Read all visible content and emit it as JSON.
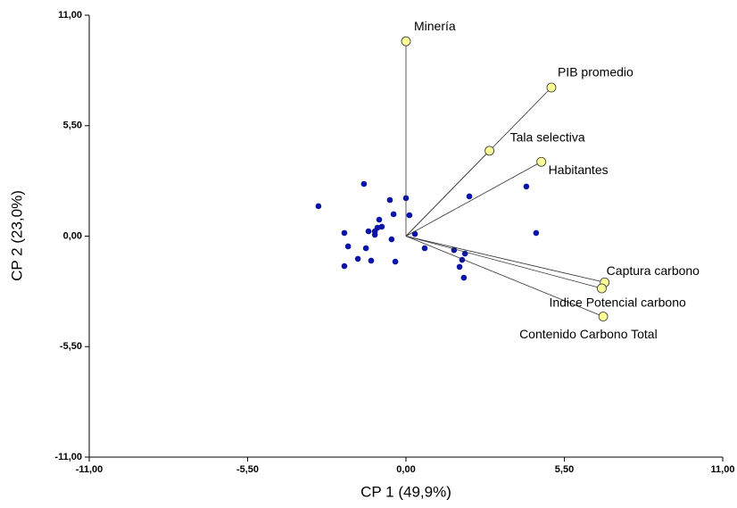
{
  "chart_data": {
    "type": "biplot",
    "x_label": "CP 1 (49,9%)",
    "y_label": "CP 2 (23,0%)",
    "xlim": [
      -11,
      11
    ],
    "ylim": [
      -11,
      11
    ],
    "xticks": [
      {
        "value": -11,
        "label": "-11,00"
      },
      {
        "value": -5.5,
        "label": "-5,50"
      },
      {
        "value": 0,
        "label": "0,00"
      },
      {
        "value": 5.5,
        "label": "5,50"
      },
      {
        "value": 11,
        "label": "11,00"
      }
    ],
    "yticks": [
      {
        "value": -11,
        "label": "-11,00"
      },
      {
        "value": -5.5,
        "label": "-5,50"
      },
      {
        "value": 0,
        "label": "0,00"
      },
      {
        "value": 5.5,
        "label": "5,50"
      },
      {
        "value": 11,
        "label": "11,00"
      }
    ],
    "points": {
      "color": "#0a14a8",
      "x": [
        -3.04,
        -1.46,
        -0.56,
        0.0,
        -0.43,
        0.12,
        -0.93,
        -0.99,
        -0.84,
        -1.08,
        -1.08,
        -2.14,
        -1.3,
        0.31,
        -2.01,
        -1.39,
        -1.67,
        -2.14,
        -1.21,
        -0.5,
        0.65,
        2.2,
        4.18,
        4.52,
        1.67,
        2.05,
        1.95,
        1.86,
        2.01,
        -0.37
      ],
      "y": [
        1.49,
        2.6,
        1.8,
        1.89,
        1.09,
        1.04,
        0.82,
        0.42,
        0.47,
        0.24,
        0.07,
        0.16,
        0.24,
        0.11,
        -0.51,
        -0.6,
        -1.13,
        -1.49,
        -1.22,
        -0.16,
        -0.6,
        1.98,
        2.47,
        0.16,
        -0.69,
        -0.87,
        -1.18,
        -1.53,
        -2.07,
        -1.27
      ]
    },
    "vector_color": "#ffff99",
    "vectors": [
      {
        "label": "Minería",
        "x": 0.0,
        "y": 9.7
      },
      {
        "label": "PIB promedio",
        "x": 5.05,
        "y": 7.4
      },
      {
        "label": "Tala selectiva",
        "x": 2.9,
        "y": 4.25
      },
      {
        "label": "Habitantes",
        "x": 4.7,
        "y": 3.7
      },
      {
        "label": "Captura carbono",
        "x": 6.9,
        "y": -2.3
      },
      {
        "label": "Indice Potencial carbono",
        "x": 6.8,
        "y": -2.6
      },
      {
        "label": "Contenido Carbono Total",
        "x": 6.85,
        "y": -4.0
      }
    ]
  }
}
